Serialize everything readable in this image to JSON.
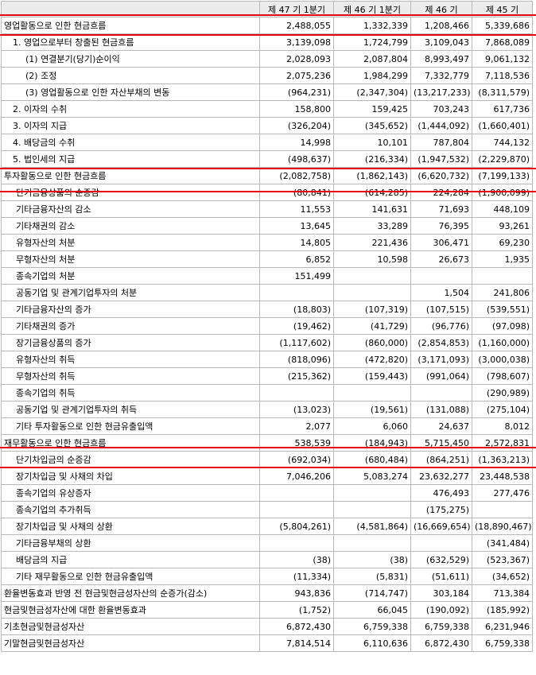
{
  "header": [
    "",
    "제 47 기 1분기",
    "제 46 기 1분기",
    "제 46 기",
    "제 45 기"
  ],
  "rows": [
    {
      "level": "section",
      "label": "영업활동으로 인한 현금흐름",
      "values": [
        "2,488,055",
        "1,332,339",
        "1,208,466",
        "5,339,686"
      ]
    },
    {
      "level": "l1",
      "label": "1. 영업으로부터 창출된 현금흐름",
      "values": [
        "3,139,098",
        "1,724,799",
        "3,109,043",
        "7,868,089"
      ]
    },
    {
      "level": "l2",
      "label": "(1) 연결분기(당기)순이익",
      "values": [
        "2,028,093",
        "2,087,804",
        "8,993,497",
        "9,061,132"
      ]
    },
    {
      "level": "l2",
      "label": "(2) 조정",
      "values": [
        "2,075,236",
        "1,984,299",
        "7,332,779",
        "7,118,536"
      ]
    },
    {
      "level": "l2",
      "label": "(3) 영업활동으로 인한 자산부채의 변동",
      "values": [
        "(964,231)",
        "(2,347,304)",
        "(13,217,233)",
        "(8,311,579)"
      ]
    },
    {
      "level": "l1",
      "label": "2. 이자의 수취",
      "values": [
        "158,800",
        "159,425",
        "703,243",
        "617,736"
      ]
    },
    {
      "level": "l1",
      "label": "3. 이자의 지급",
      "values": [
        "(326,204)",
        "(345,652)",
        "(1,444,092)",
        "(1,660,401)"
      ]
    },
    {
      "level": "l1",
      "label": "4. 배당금의 수취",
      "values": [
        "14,998",
        "10,101",
        "787,804",
        "744,132"
      ]
    },
    {
      "level": "l1",
      "label": "5. 법인세의 지급",
      "values": [
        "(498,637)",
        "(216,334)",
        "(1,947,532)",
        "(2,229,870)"
      ]
    },
    {
      "level": "section",
      "label": "투자활동으로 인한 현금흐름",
      "values": [
        "(2,082,758)",
        "(1,862,143)",
        "(6,620,732)",
        "(7,199,133)"
      ]
    },
    {
      "level": "lb",
      "label": "단기금융상품의 순증감",
      "values": [
        "(80,841)",
        "(614,285)",
        "224,284",
        "(1,900,099)"
      ]
    },
    {
      "level": "lb",
      "label": "기타금융자산의 감소",
      "values": [
        "11,553",
        "141,631",
        "71,693",
        "448,109"
      ]
    },
    {
      "level": "lb",
      "label": "기타채권의 감소",
      "values": [
        "13,645",
        "33,289",
        "76,395",
        "93,261"
      ]
    },
    {
      "level": "lb",
      "label": "유형자산의 처분",
      "values": [
        "14,805",
        "221,436",
        "306,471",
        "69,230"
      ]
    },
    {
      "level": "lb",
      "label": "무형자산의 처분",
      "values": [
        "6,852",
        "10,598",
        "26,673",
        "1,935"
      ]
    },
    {
      "level": "lb",
      "label": "종속기업의 처분",
      "values": [
        "151,499",
        "",
        "",
        ""
      ]
    },
    {
      "level": "lb",
      "label": "공동기업 및 관계기업투자의 처분",
      "values": [
        "",
        "",
        "1,504",
        "241,806"
      ]
    },
    {
      "level": "lb",
      "label": "기타금융자산의 증가",
      "values": [
        "(18,803)",
        "(107,319)",
        "(107,515)",
        "(539,551)"
      ]
    },
    {
      "level": "lb",
      "label": "기타채권의 증가",
      "values": [
        "(19,462)",
        "(41,729)",
        "(96,776)",
        "(97,098)"
      ]
    },
    {
      "level": "lb",
      "label": "장기금융상품의 증가",
      "values": [
        "(1,117,602)",
        "(860,000)",
        "(2,854,853)",
        "(1,160,000)"
      ]
    },
    {
      "level": "lb",
      "label": "유형자산의 취득",
      "values": [
        "(818,096)",
        "(472,820)",
        "(3,171,093)",
        "(3,000,038)"
      ]
    },
    {
      "level": "lb",
      "label": "무형자산의 취득",
      "values": [
        "(215,362)",
        "(159,443)",
        "(991,064)",
        "(798,607)"
      ]
    },
    {
      "level": "lb",
      "label": "종속기업의 취득",
      "values": [
        "",
        "",
        "",
        "(290,989)"
      ]
    },
    {
      "level": "lb",
      "label": "공동기업 및 관계기업투자의 취득",
      "values": [
        "(13,023)",
        "(19,561)",
        "(131,088)",
        "(275,104)"
      ]
    },
    {
      "level": "lb",
      "label": "기타 투자활동으로 인한 현금유출입액",
      "values": [
        "2,077",
        "6,060",
        "24,637",
        "8,012"
      ]
    },
    {
      "level": "section",
      "label": "재무활동으로 인한 현금흐름",
      "values": [
        "538,539",
        "(184,943)",
        "5,715,450",
        "2,572,831"
      ]
    },
    {
      "level": "lb",
      "label": "단기차입금의 순증감",
      "values": [
        "(692,034)",
        "(680,484)",
        "(864,251)",
        "(1,363,213)"
      ]
    },
    {
      "level": "lb",
      "label": "장기차입금 및 사채의 차입",
      "values": [
        "7,046,206",
        "5,083,274",
        "23,632,277",
        "23,448,538"
      ]
    },
    {
      "level": "lb",
      "label": "종속기업의 유상증자",
      "values": [
        "",
        "",
        "476,493",
        "277,476"
      ]
    },
    {
      "level": "lb",
      "label": "종속기업의 추가취득",
      "values": [
        "",
        "",
        "(175,275)",
        ""
      ]
    },
    {
      "level": "lb",
      "label": "장기차입금 및 사채의 상환",
      "values": [
        "(5,804,261)",
        "(4,581,864)",
        "(16,669,654)",
        "(18,890,467)"
      ]
    },
    {
      "level": "lb",
      "label": "기타금융부채의 상환",
      "values": [
        "",
        "",
        "",
        "(341,484)"
      ]
    },
    {
      "level": "lb",
      "label": "배당금의 지급",
      "values": [
        "(38)",
        "(38)",
        "(632,529)",
        "(523,367)"
      ]
    },
    {
      "level": "lb",
      "label": "기타 재무활동으로 인한 현금유출입액",
      "values": [
        "(11,334)",
        "(5,831)",
        "(51,611)",
        "(34,652)"
      ]
    },
    {
      "level": "section",
      "label": "환율변동효과 반영 전 현금및현금성자산의 순증가(감소)",
      "values": [
        "943,836",
        "(714,747)",
        "303,184",
        "713,384"
      ]
    },
    {
      "level": "section",
      "label": "현금및현금성자산에 대한 환율변동효과",
      "values": [
        "(1,752)",
        "66,045",
        "(190,092)",
        "(185,992)"
      ]
    },
    {
      "level": "section",
      "label": "기초현금및현금성자산",
      "values": [
        "6,872,430",
        "6,759,338",
        "6,759,338",
        "6,231,946"
      ]
    },
    {
      "level": "section",
      "label": "기말현금및현금성자산",
      "values": [
        "7,814,514",
        "6,110,636",
        "6,872,430",
        "6,759,338"
      ]
    }
  ],
  "highlight_color": "#e60012"
}
